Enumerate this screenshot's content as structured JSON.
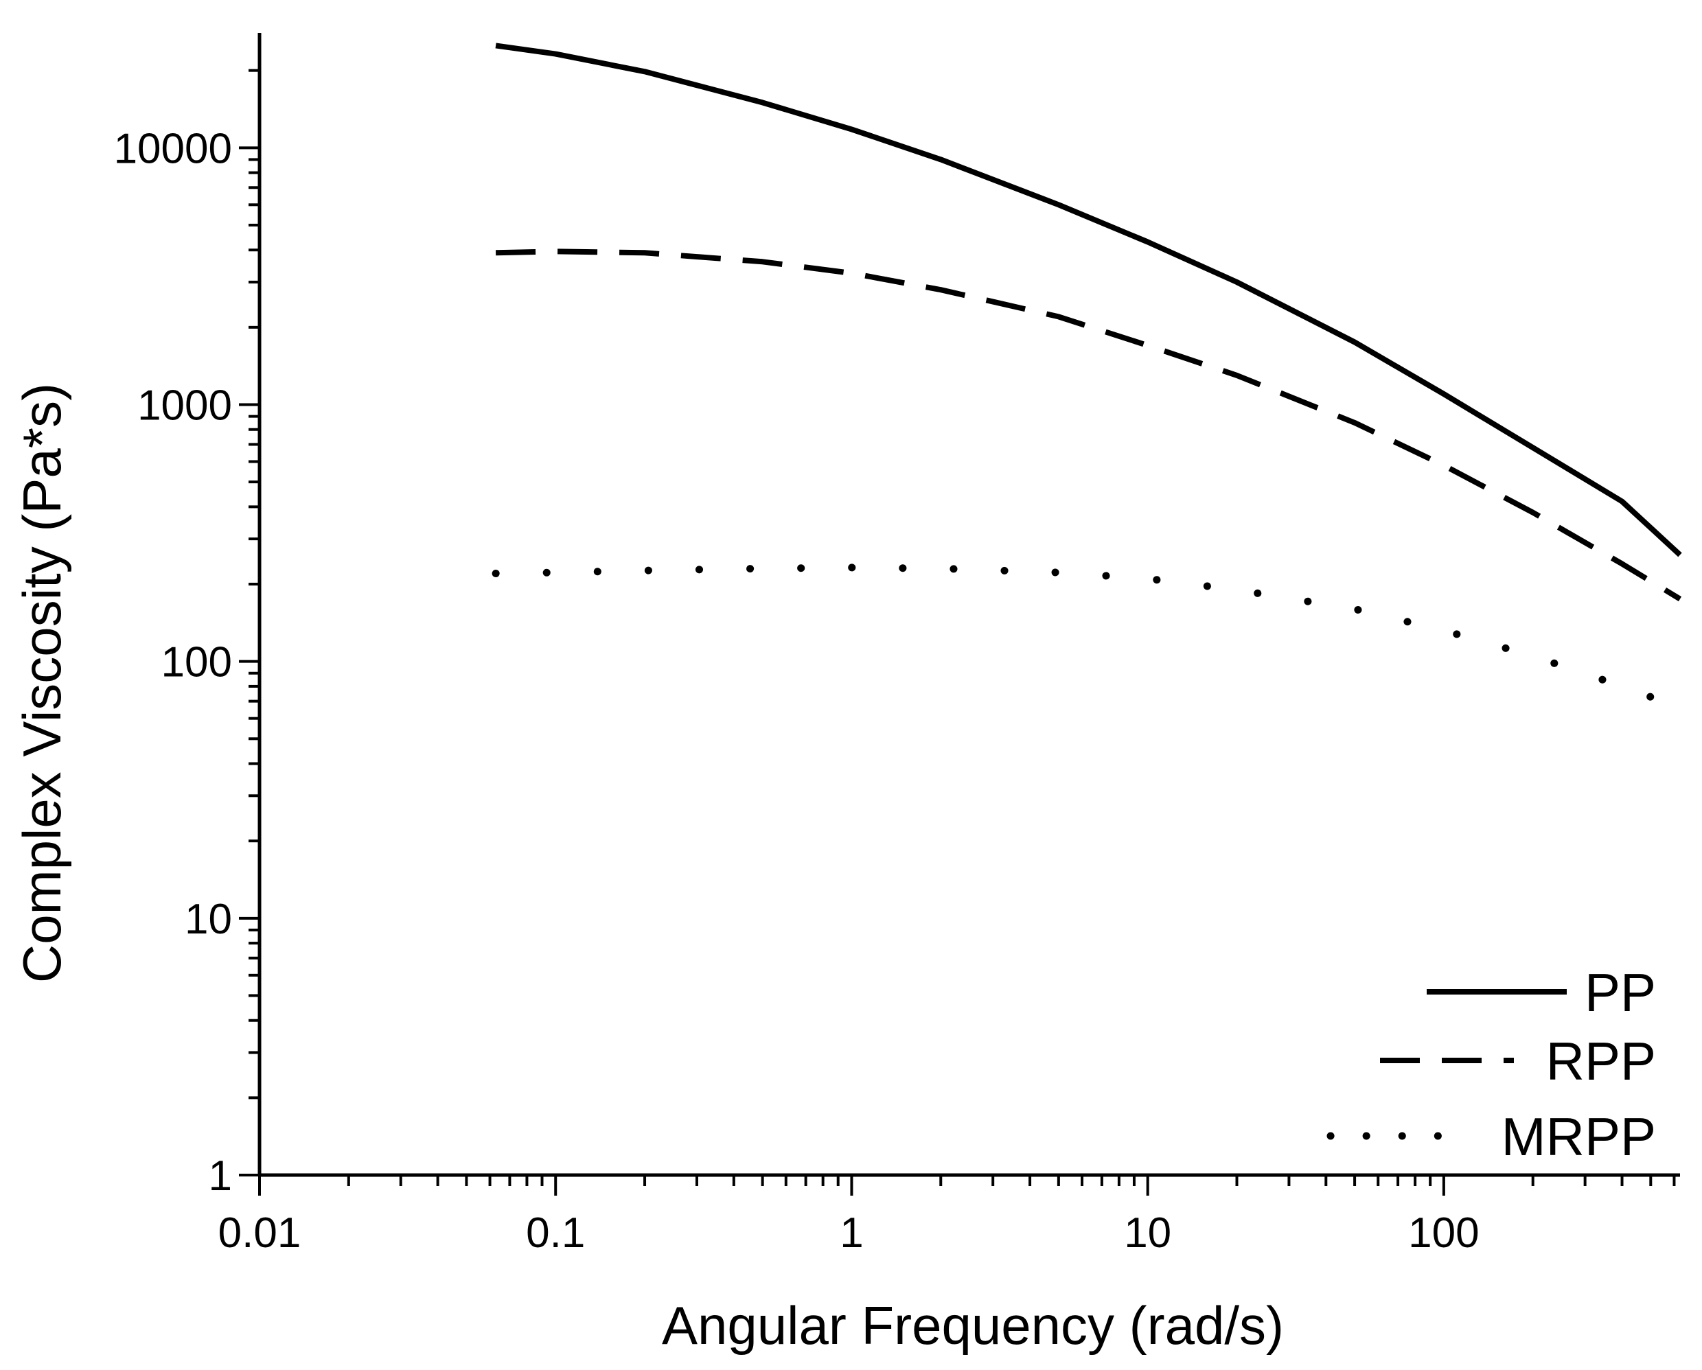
{
  "chart_data": {
    "type": "line",
    "xscale": "log",
    "yscale": "log",
    "xlabel": "Angular Frequency (rad/s)",
    "ylabel": "Complex Viscosity (Pa*s)",
    "xlim": [
      0.01,
      628
    ],
    "ylim": [
      1,
      28000
    ],
    "xticks": [
      0.01,
      0.1,
      1,
      10,
      100
    ],
    "xtick_labels": [
      "0.01",
      "0.1",
      "1",
      "10",
      "100"
    ],
    "yticks": [
      1,
      10,
      100,
      1000,
      10000
    ],
    "ytick_labels": [
      "1",
      "10",
      "100",
      "1000",
      "10000"
    ],
    "legend_position": "bottom-right",
    "series": [
      {
        "name": "PP",
        "style": "solid",
        "x": [
          0.0628,
          0.1,
          0.2,
          0.5,
          1,
          2,
          5,
          10,
          20,
          50,
          100,
          200,
          400,
          628
        ],
        "y": [
          25000,
          23200,
          19800,
          15000,
          11800,
          9000,
          6000,
          4300,
          3000,
          1750,
          1100,
          680,
          420,
          260
        ]
      },
      {
        "name": "RPP",
        "style": "dashed",
        "x": [
          0.0628,
          0.1,
          0.2,
          0.5,
          1,
          2,
          5,
          10,
          20,
          50,
          100,
          200,
          400,
          628
        ],
        "y": [
          3900,
          3950,
          3900,
          3600,
          3250,
          2800,
          2200,
          1700,
          1300,
          850,
          580,
          380,
          240,
          175
        ]
      },
      {
        "name": "MRPP",
        "style": "dotted",
        "x": [
          0.0628,
          0.1,
          0.2,
          0.5,
          1,
          2,
          5,
          10,
          20,
          50,
          100,
          200,
          400,
          628
        ],
        "y": [
          220,
          222,
          226,
          230,
          232,
          230,
          222,
          210,
          190,
          160,
          132,
          105,
          80,
          66
        ]
      }
    ]
  }
}
